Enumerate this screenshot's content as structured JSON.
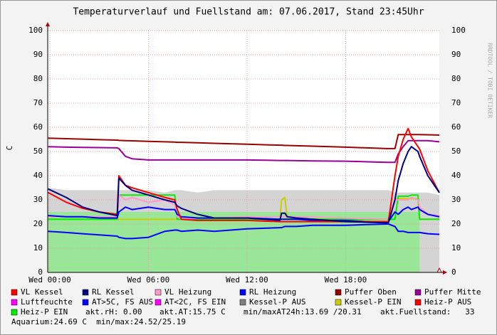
{
  "chart_data": {
    "type": "line",
    "title": "Temperaturverlauf und Fuellstand am: 07.06.2017, Stand 23:45Uhr",
    "ylabel": "C",
    "watermark": "RRDTOOL / TOBI OETIKER",
    "xlim": [
      -0.13,
      23.7
    ],
    "ylim": [
      0,
      100
    ],
    "xticks": [
      {
        "value": 0,
        "label": "Wed 00:00"
      },
      {
        "value": 6,
        "label": "Wed 06:00"
      },
      {
        "value": 12,
        "label": "Wed 12:00"
      },
      {
        "value": 18,
        "label": "Wed 18:00"
      }
    ],
    "yticks": [
      0,
      10,
      20,
      30,
      40,
      50,
      60,
      70,
      80,
      90,
      100
    ],
    "grid": true,
    "x": [
      -0.1,
      1,
      2,
      3,
      4.1,
      4.2,
      4.6,
      5,
      6,
      7,
      7.6,
      7.75,
      8,
      9,
      10,
      12,
      14,
      14.1,
      14.3,
      14.45,
      15,
      16,
      18,
      20.5,
      20.6,
      21,
      21.2,
      21.5,
      21.8,
      22,
      22.4,
      22.5,
      23,
      23.7
    ],
    "areas": [
      {
        "color": "#d4d4d4",
        "values": [
          35,
          34,
          34,
          34,
          34,
          34,
          34,
          34,
          34,
          33,
          34,
          34,
          34,
          33,
          34,
          34,
          34,
          34,
          34,
          34,
          34,
          34,
          34,
          34,
          34,
          33,
          33,
          33,
          33,
          33,
          33,
          33,
          33,
          32
        ]
      },
      {
        "color": "#99e699",
        "values": [
          25,
          25,
          25,
          25,
          25,
          25,
          25,
          25,
          25,
          25,
          25,
          25,
          25,
          25,
          25,
          25,
          25,
          25,
          25,
          25,
          25,
          25,
          25,
          25,
          25,
          25,
          25,
          25,
          25,
          25,
          25,
          25,
          null,
          null
        ]
      }
    ],
    "series": [
      {
        "color": "#990000",
        "values": [
          55.5,
          55.3,
          55.1,
          54.9,
          54.7,
          54.6,
          54.5,
          54.4,
          54.2,
          54,
          53.9,
          53.8,
          53.8,
          53.6,
          53.4,
          53,
          52.6,
          52.6,
          52.5,
          52.5,
          52.4,
          52.2,
          51.8,
          51.2,
          51.2,
          51.2,
          57,
          57,
          57,
          57,
          57,
          57,
          56.9,
          56.8
        ]
      },
      {
        "color": "#990099",
        "values": [
          52,
          51.8,
          51.7,
          51.6,
          51.5,
          51.2,
          48,
          47,
          46.5,
          46.5,
          46.5,
          46.5,
          46.5,
          46.5,
          46.5,
          46.5,
          46.3,
          46.3,
          46.3,
          46.3,
          46.2,
          46.1,
          46,
          45.5,
          45.5,
          45.5,
          49,
          52,
          54.5,
          54.5,
          54.5,
          54.5,
          54.5,
          54
        ]
      },
      {
        "color": "#0000ff",
        "values": [
          17,
          16.5,
          16,
          15.5,
          15,
          14.5,
          14,
          14,
          14.5,
          17,
          17.5,
          17.5,
          17,
          17.5,
          17,
          18,
          18.5,
          18.5,
          19,
          19,
          19,
          19.5,
          19.5,
          20,
          20,
          19,
          17,
          17,
          16.5,
          16.5,
          16.5,
          16.5,
          16,
          15.75
        ]
      },
      {
        "color": "#cccc00",
        "values": [
          22,
          22,
          22,
          22,
          22,
          22,
          22,
          22,
          22,
          22,
          22,
          22,
          22,
          22,
          22,
          22,
          22,
          30,
          31,
          22,
          22,
          22,
          22,
          22,
          22,
          30,
          30.5,
          30.5,
          30.5,
          30.5,
          30.5,
          22,
          22,
          22
        ]
      },
      {
        "color": "#00ee00",
        "values": [
          22,
          22,
          22,
          22,
          22,
          32,
          32,
          32,
          32,
          32,
          32,
          22,
          22,
          22,
          22,
          22,
          22,
          22,
          22,
          22,
          22,
          22,
          22,
          22,
          22,
          22,
          31.5,
          31.5,
          31.5,
          32,
          32,
          22,
          22,
          22
        ]
      },
      {
        "color": "#ff99cc",
        "values": [
          23,
          23,
          23,
          23,
          23,
          32,
          30,
          31,
          29,
          30,
          28,
          23,
          22,
          22.5,
          22.5,
          23,
          23,
          23,
          23,
          23,
          23,
          23,
          22.5,
          22,
          23,
          30,
          30,
          30,
          30,
          31,
          30,
          27,
          24,
          23.5
        ]
      },
      {
        "color": "#0000ff",
        "values": [
          23.5,
          23,
          23,
          22.5,
          22.5,
          25,
          27,
          26,
          27,
          26,
          26,
          24,
          23,
          22.5,
          22.5,
          22.5,
          22,
          22,
          22,
          22,
          22,
          21.5,
          21.5,
          20.5,
          21,
          25,
          24,
          26,
          27,
          26,
          27,
          26,
          24,
          23
        ]
      },
      {
        "color": "#ff0000",
        "values": [
          33,
          29,
          26.5,
          25,
          24,
          40,
          36,
          35,
          33,
          31,
          30,
          26,
          22,
          21.5,
          21.5,
          21.5,
          21,
          21,
          21,
          21,
          21,
          21,
          21,
          21,
          21,
          40,
          48,
          55,
          59.5,
          56,
          52,
          51,
          42,
          33
        ]
      },
      {
        "color": "#000080",
        "values": [
          34.5,
          31,
          27,
          25,
          23.5,
          39,
          36,
          34,
          32,
          30,
          29,
          27.5,
          26.5,
          24,
          22.5,
          22.5,
          21.5,
          24.5,
          24.5,
          23,
          22.5,
          22,
          21,
          20.5,
          20.5,
          30,
          38,
          45,
          50,
          52,
          50,
          48,
          40,
          33
        ]
      }
    ],
    "legend": [
      {
        "name": "VL Kessel",
        "color": "#ff0000"
      },
      {
        "name": "RL Kessel",
        "color": "#000080"
      },
      {
        "name": "VL Heizung",
        "color": "#ff99cc"
      },
      {
        "name": "RL Heizung",
        "color": "#0000ff"
      },
      {
        "name": "Puffer Oben",
        "color": "#990000"
      },
      {
        "name": "Puffer Mitte",
        "color": "#990099"
      },
      {
        "name": "Luftfeuchte",
        "color": "#ff00ff"
      },
      {
        "name": "AT>5C, FS AUS",
        "color": "#0000ff"
      },
      {
        "name": "AT<2C, FS EIN",
        "color": "#ff00ff"
      },
      {
        "name": "Kessel-P AUS",
        "color": "#808080"
      },
      {
        "name": "Kessel-P EIN",
        "color": "#cccc00"
      },
      {
        "name": "Heiz-P AUS",
        "color": "#ff0000"
      },
      {
        "name": "Heiz-P EIN",
        "color": "#00ee00"
      }
    ],
    "notes": [
      "akt.rH: 0.00",
      "akt.AT:15.75 C",
      "min/maxAT24h:13.69 /20.31",
      "akt.Fuellstand:   33",
      "Aquarium:24.69 C  min/max:24.52/25.19"
    ]
  }
}
